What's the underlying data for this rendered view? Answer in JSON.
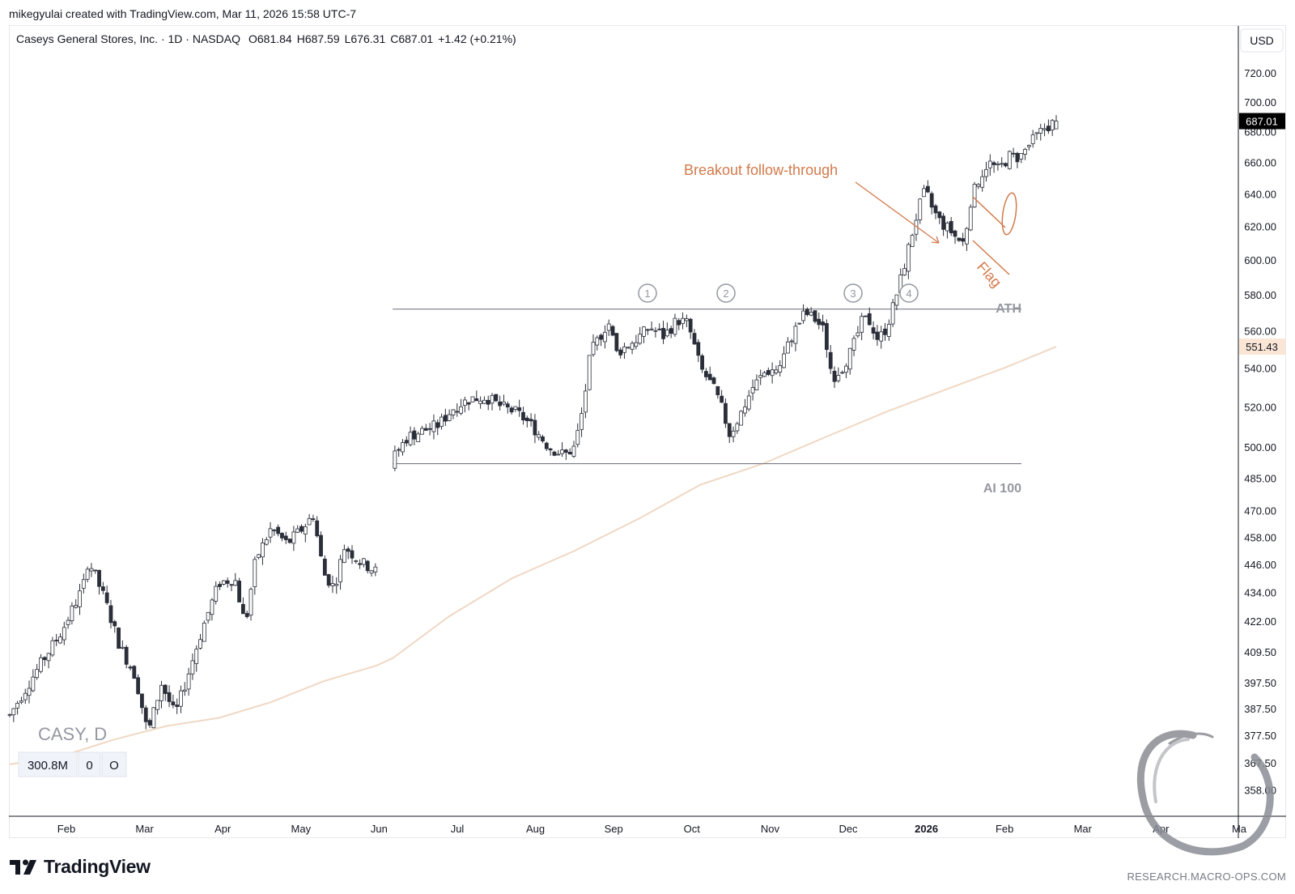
{
  "caption": "mikegyulai created with TradingView.com, Mar 11, 2026 15:58 UTC-7",
  "legend": {
    "symbol_line": "Caseys General Stores, Inc. · 1D · NASDAQ",
    "open": "O681.84",
    "high": "H687.59",
    "low": "L676.31",
    "close": "C687.01",
    "change": "+1.42 (+0.21%)"
  },
  "currency": "USD",
  "symbol_watermark": "CASY, D",
  "indicator_row": [
    "300.8M",
    "0",
    "O"
  ],
  "brand": "TradingView",
  "source_watermark": "RESEARCH.MACRO-OPS.COM",
  "colors": {
    "up_candle": "#ffffff",
    "down_candle": "#2a2e39",
    "wick": "#2a2e39",
    "moving_average": "#f0d8c4",
    "annotation": "#d27a4b",
    "level_line": "#787b86",
    "circle_marker": "#9598a1",
    "last_price_bg": "#000000",
    "ma_price_bg": "#fbe6d6"
  },
  "annotations": {
    "breakout": "Breakout follow-through",
    "flag": "Flag",
    "ath_label": "ATH",
    "range_low_label": "AI 100",
    "markers": [
      "1",
      "2",
      "3",
      "4"
    ]
  },
  "chart_data": {
    "type": "candlestick",
    "title": "Caseys General Stores, Inc. · 1D · NASDAQ",
    "y_axis": {
      "scale": "log",
      "ticks": [
        358.0,
        367.5,
        377.5,
        387.5,
        397.5,
        409.5,
        422.0,
        434.0,
        446.0,
        458.0,
        470.0,
        485.0,
        500.0,
        520.0,
        540.0,
        560.0,
        580.0,
        600.0,
        620.0,
        640.0,
        660.0,
        680.0,
        700.0,
        720.0
      ],
      "tick_labels": [
        "358.00",
        "367.50",
        "377.50",
        "387.50",
        "397.50",
        "409.50",
        "422.00",
        "434.00",
        "446.00",
        "458.00",
        "470.00",
        "485.00",
        "500.00",
        "520.00",
        "540.00",
        "560.00",
        "580.00",
        "600.00",
        "620.00",
        "640.00",
        "660.00",
        "680.00",
        "700.00",
        "720.00"
      ],
      "range": [
        350,
        735
      ],
      "last_price": 687.01,
      "last_price_label": "687.01",
      "ma_price": 551.43,
      "ma_price_label": "551.43"
    },
    "x_axis": {
      "labels": [
        "Feb",
        "Mar",
        "Apr",
        "May",
        "Jun",
        "Jul",
        "Aug",
        "Sep",
        "Oct",
        "Nov",
        "Dec",
        "2026",
        "Feb",
        "Mar",
        "Apr",
        "Ma"
      ],
      "bold_label": "2026"
    },
    "levels": [
      {
        "name": "ATH",
        "value": 572.0
      },
      {
        "name": "AI 100",
        "value": 492.0
      }
    ],
    "anchors": [
      {
        "p": 0.0,
        "v": 385
      },
      {
        "p": 0.015,
        "v": 395
      },
      {
        "p": 0.03,
        "v": 405
      },
      {
        "p": 0.05,
        "v": 418
      },
      {
        "p": 0.07,
        "v": 436
      },
      {
        "p": 0.075,
        "v": 448
      },
      {
        "p": 0.09,
        "v": 432
      },
      {
        "p": 0.105,
        "v": 412
      },
      {
        "p": 0.12,
        "v": 400
      },
      {
        "p": 0.132,
        "v": 378
      },
      {
        "p": 0.145,
        "v": 397
      },
      {
        "p": 0.158,
        "v": 385
      },
      {
        "p": 0.17,
        "v": 400
      },
      {
        "p": 0.185,
        "v": 420
      },
      {
        "p": 0.2,
        "v": 438
      },
      {
        "p": 0.215,
        "v": 440
      },
      {
        "p": 0.225,
        "v": 420
      },
      {
        "p": 0.235,
        "v": 448
      },
      {
        "p": 0.25,
        "v": 462
      },
      {
        "p": 0.265,
        "v": 455
      },
      {
        "p": 0.28,
        "v": 462
      },
      {
        "p": 0.29,
        "v": 468
      },
      {
        "p": 0.3,
        "v": 442
      },
      {
        "p": 0.31,
        "v": 436
      },
      {
        "p": 0.32,
        "v": 454
      },
      {
        "p": 0.335,
        "v": 447
      },
      {
        "p": 0.35,
        "v": 443
      },
      {
        "p": 0.36,
        "v": 447
      },
      {
        "p": 0.366,
        "v": 440
      },
      {
        "p": 0.367,
        "v": 495
      },
      {
        "p": 0.38,
        "v": 505
      },
      {
        "p": 0.395,
        "v": 508
      },
      {
        "p": 0.41,
        "v": 511
      },
      {
        "p": 0.425,
        "v": 520
      },
      {
        "p": 0.44,
        "v": 524
      },
      {
        "p": 0.455,
        "v": 525
      },
      {
        "p": 0.47,
        "v": 520
      },
      {
        "p": 0.485,
        "v": 517
      },
      {
        "p": 0.5,
        "v": 510
      },
      {
        "p": 0.515,
        "v": 500
      },
      {
        "p": 0.53,
        "v": 496
      },
      {
        "p": 0.54,
        "v": 500
      },
      {
        "p": 0.548,
        "v": 520
      },
      {
        "p": 0.555,
        "v": 548
      },
      {
        "p": 0.565,
        "v": 558
      },
      {
        "p": 0.572,
        "v": 565
      },
      {
        "p": 0.58,
        "v": 548
      },
      {
        "p": 0.59,
        "v": 552
      },
      {
        "p": 0.6,
        "v": 556
      },
      {
        "p": 0.612,
        "v": 562
      },
      {
        "p": 0.625,
        "v": 557
      },
      {
        "p": 0.638,
        "v": 566
      },
      {
        "p": 0.648,
        "v": 564
      },
      {
        "p": 0.66,
        "v": 540
      },
      {
        "p": 0.672,
        "v": 530
      },
      {
        "p": 0.68,
        "v": 520
      },
      {
        "p": 0.688,
        "v": 506
      },
      {
        "p": 0.698,
        "v": 516
      },
      {
        "p": 0.71,
        "v": 530
      },
      {
        "p": 0.722,
        "v": 538
      },
      {
        "p": 0.735,
        "v": 540
      },
      {
        "p": 0.748,
        "v": 558
      },
      {
        "p": 0.76,
        "v": 570
      },
      {
        "p": 0.77,
        "v": 566
      },
      {
        "p": 0.778,
        "v": 560
      },
      {
        "p": 0.786,
        "v": 535
      },
      {
        "p": 0.795,
        "v": 540
      },
      {
        "p": 0.805,
        "v": 550
      },
      {
        "p": 0.815,
        "v": 566
      },
      {
        "p": 0.822,
        "v": 565
      },
      {
        "p": 0.83,
        "v": 555
      },
      {
        "p": 0.838,
        "v": 562
      },
      {
        "p": 0.845,
        "v": 575
      },
      {
        "p": 0.852,
        "v": 590
      },
      {
        "p": 0.86,
        "v": 610
      },
      {
        "p": 0.868,
        "v": 630
      },
      {
        "p": 0.875,
        "v": 642
      },
      {
        "p": 0.882,
        "v": 630
      },
      {
        "p": 0.89,
        "v": 622
      },
      {
        "p": 0.898,
        "v": 618
      },
      {
        "p": 0.906,
        "v": 612
      },
      {
        "p": 0.912,
        "v": 610
      },
      {
        "p": 0.918,
        "v": 635
      },
      {
        "p": 0.925,
        "v": 648
      },
      {
        "p": 0.935,
        "v": 660
      },
      {
        "p": 0.945,
        "v": 655
      },
      {
        "p": 0.955,
        "v": 664
      },
      {
        "p": 0.965,
        "v": 663
      },
      {
        "p": 0.975,
        "v": 672
      },
      {
        "p": 0.988,
        "v": 682
      },
      {
        "p": 1.0,
        "v": 687
      }
    ],
    "moving_average": {
      "name": "",
      "values": [
        [
          0.0,
          367
        ],
        [
          0.05,
          370
        ],
        [
          0.1,
          376
        ],
        [
          0.15,
          381
        ],
        [
          0.2,
          384
        ],
        [
          0.25,
          390
        ],
        [
          0.3,
          398
        ],
        [
          0.35,
          404
        ],
        [
          0.366,
          407
        ],
        [
          0.42,
          424
        ],
        [
          0.48,
          440
        ],
        [
          0.54,
          452
        ],
        [
          0.6,
          466
        ],
        [
          0.66,
          482
        ],
        [
          0.72,
          492
        ],
        [
          0.78,
          505
        ],
        [
          0.84,
          518
        ],
        [
          0.9,
          530
        ],
        [
          0.95,
          540
        ],
        [
          1.0,
          551.43
        ]
      ]
    }
  }
}
